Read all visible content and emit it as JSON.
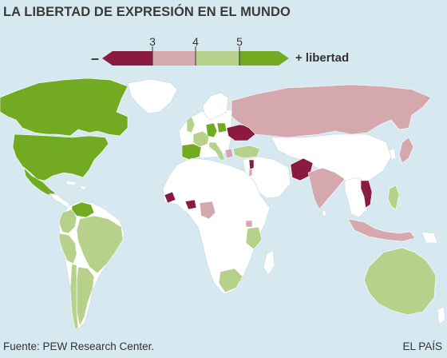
{
  "title": "LA LIBERTAD DE EXPRESIÓN EN EL MUNDO",
  "legend": {
    "ticks": [
      "3",
      "4",
      "5"
    ],
    "minus_label": "–",
    "plus_label": "+ libertad",
    "colors": {
      "lowest": "#8a1a3f",
      "low": "#d4a8ad",
      "medium": "#b6d28a",
      "high": "#72ab21",
      "no_data": "#ffffff",
      "water": "#d6e8f0"
    }
  },
  "footer": {
    "source": "Fuente: PEW Research Center.",
    "brand": "EL PAÍS"
  }
}
